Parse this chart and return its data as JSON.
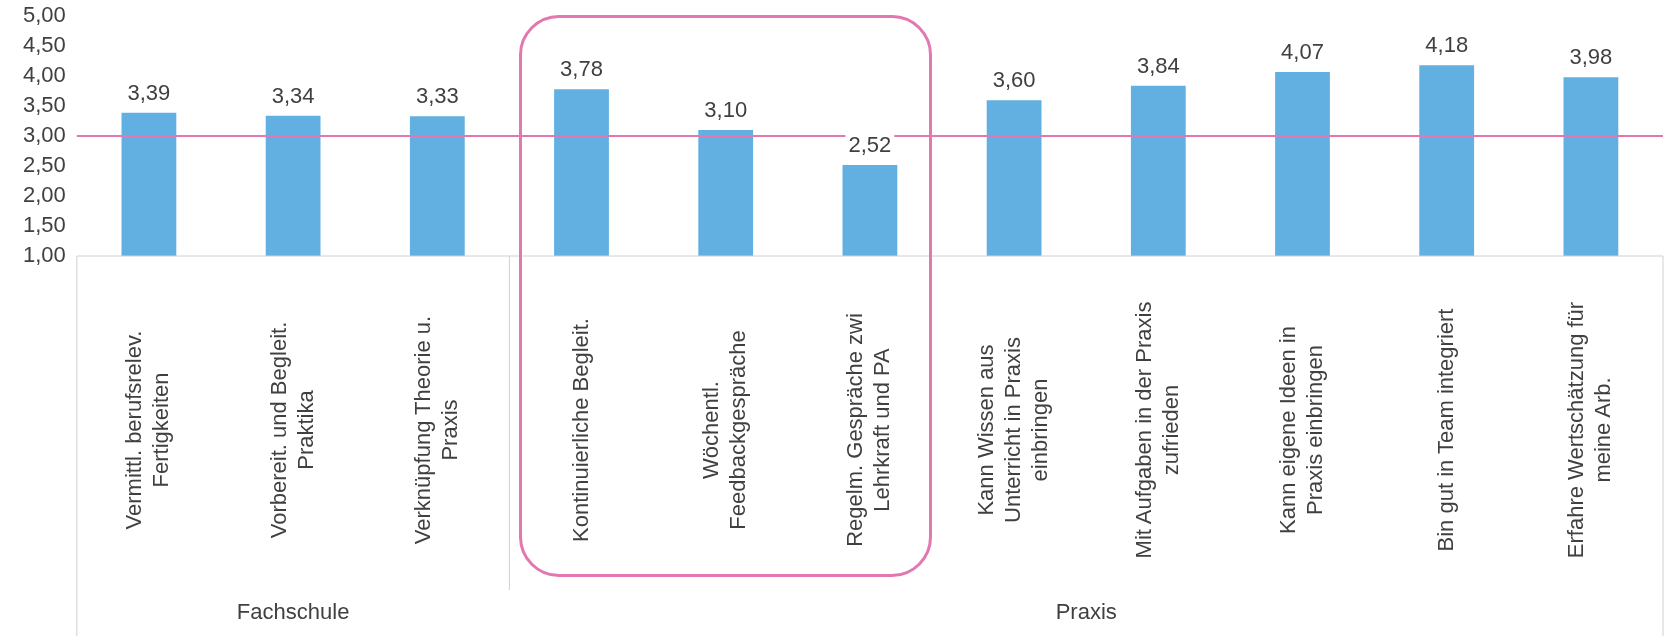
{
  "chart_data": {
    "type": "bar",
    "categories": [
      "Vermittl. berufsrelev. Fertigkeiten",
      "Vorbereit. und Begleit. Praktika",
      "Verknüpfung Theorie u. Praxis",
      "Kontinuierliche Begleit.",
      "Wöchentl. Feedbackgespräche",
      "Regelm. Gespräche zwi Lehrkraft und PA",
      "Kann Wissen aus Unterricht in Praxis einbringen",
      "Mit Aufgaben in der Praxis zufrieden",
      "Kann eigene Ideen in Praxis einbringen",
      "Bin gut in Team integriert",
      "Erfahre Wertschätzung für meine Arb."
    ],
    "values": [
      3.39,
      3.34,
      3.33,
      3.78,
      3.1,
      2.52,
      3.6,
      3.84,
      4.07,
      4.18,
      3.98
    ],
    "value_labels": [
      "3,39",
      "3,34",
      "3,33",
      "3,78",
      "3,10",
      "2,52",
      "3,60",
      "3,84",
      "4,07",
      "4,18",
      "3,98"
    ],
    "color": "#62afe2",
    "ylim": [
      1,
      5
    ],
    "yticks": [
      {
        "value": 1,
        "label": "1,00"
      },
      {
        "value": 1.5,
        "label": "1,50"
      },
      {
        "value": 2,
        "label": "2,00"
      },
      {
        "value": 2.5,
        "label": "2,50"
      },
      {
        "value": 3,
        "label": "3,00"
      },
      {
        "value": 3.5,
        "label": "3,50"
      },
      {
        "value": 4,
        "label": "4,00"
      },
      {
        "value": 4.5,
        "label": "4,50"
      },
      {
        "value": 5,
        "label": "5,00"
      }
    ],
    "ref_lines": [
      {
        "axis": "y",
        "value": 3,
        "label": null,
        "color": "#e377b0"
      }
    ],
    "annotations": [
      "Fachschule",
      "Praxis"
    ],
    "grid": false,
    "legend": false
  }
}
